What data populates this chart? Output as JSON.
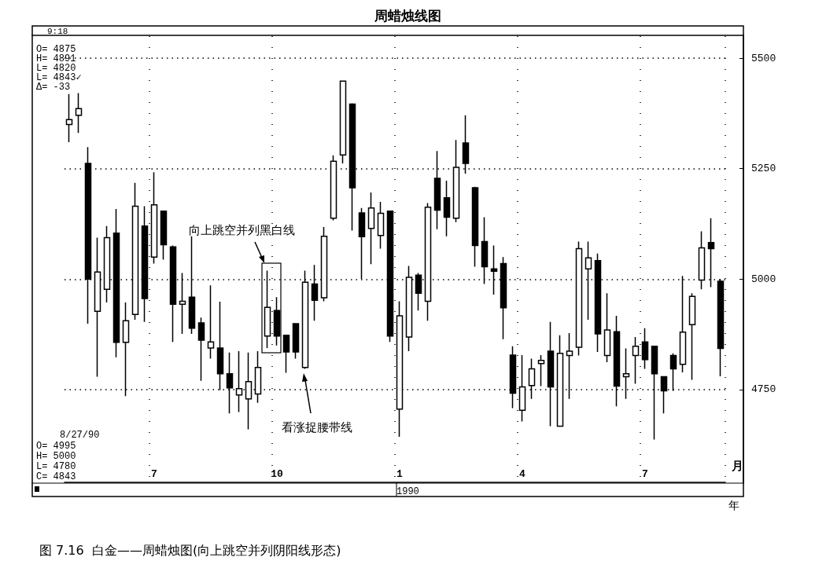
{
  "chart_data": {
    "type": "candlestick",
    "title": "周蜡烛线图",
    "categories": [
      null,
      null,
      null,
      null,
      null,
      null,
      null,
      null,
      null,
      "7",
      null,
      null,
      null,
      null,
      null,
      null,
      null,
      null,
      null,
      null,
      null,
      null,
      "10",
      null,
      null,
      null,
      null,
      null,
      null,
      null,
      null,
      null,
      null,
      null,
      null,
      "1",
      null,
      null,
      null,
      null,
      null,
      null,
      null,
      null,
      null,
      null,
      null,
      null,
      "4",
      null,
      null,
      null,
      null,
      null,
      null,
      null,
      null,
      null,
      null,
      null,
      null,
      "7",
      null,
      null,
      null,
      null,
      null,
      null,
      null,
      null
    ],
    "xlabel": "月",
    "ohlc": [
      [
        5350,
        5419,
        5310,
        5361
      ],
      [
        5371,
        5421,
        5331,
        5386
      ],
      [
        5262,
        5299,
        4899,
        5000
      ],
      [
        4927,
        5094,
        4779,
        5016
      ],
      [
        4977,
        5120,
        4947,
        5094
      ],
      [
        5104,
        5159,
        4823,
        4857
      ],
      [
        4857,
        4947,
        4735,
        4906
      ],
      [
        4920,
        5218,
        4908,
        5165
      ],
      [
        5120,
        5165,
        4903,
        4956
      ],
      [
        5050,
        5242,
        5035,
        5168
      ],
      [
        5154,
        5154,
        5044,
        5078
      ],
      [
        5073,
        5076,
        4858,
        4943
      ],
      [
        4943,
        5014,
        4876,
        4950
      ],
      [
        4959,
        5097,
        4876,
        4889
      ],
      [
        4901,
        4913,
        4770,
        4862
      ],
      [
        4844,
        4986,
        4820,
        4858
      ],
      [
        4844,
        4949,
        4749,
        4786
      ],
      [
        4786,
        4834,
        4696,
        4754
      ],
      [
        4738,
        4837,
        4699,
        4752
      ],
      [
        4729,
        4834,
        4660,
        4768
      ],
      [
        4740,
        4837,
        4720,
        4800
      ],
      [
        4871,
        5019,
        4844,
        4936
      ],
      [
        4929,
        4959,
        4850,
        4871
      ],
      [
        4873,
        4873,
        4788,
        4835
      ],
      [
        4899,
        4899,
        4820,
        4835
      ],
      [
        4800,
        5019,
        4797,
        4993
      ],
      [
        4989,
        5032,
        4906,
        4952
      ],
      [
        4958,
        5118,
        4950,
        5097
      ],
      [
        5138,
        5280,
        5133,
        5267
      ],
      [
        5281,
        5448,
        5262,
        5448
      ],
      [
        5396,
        5398,
        5110,
        5207
      ],
      [
        5150,
        5161,
        5000,
        5096
      ],
      [
        5115,
        5196,
        5034,
        5161
      ],
      [
        5099,
        5175,
        5069,
        5149
      ],
      [
        5154,
        5154,
        4858,
        4871
      ],
      [
        4706,
        4950,
        4643,
        4917
      ],
      [
        4869,
        5030,
        4837,
        5004
      ],
      [
        5009,
        5014,
        4929,
        4968
      ],
      [
        4950,
        5172,
        4906,
        5163
      ],
      [
        5228,
        5290,
        5113,
        5156
      ],
      [
        5184,
        5223,
        5097,
        5140
      ],
      [
        5138,
        5315,
        5129,
        5253
      ],
      [
        5308,
        5371,
        5239,
        5262
      ],
      [
        5207,
        5209,
        5028,
        5076
      ],
      [
        5085,
        5140,
        4989,
        5028
      ],
      [
        5023,
        5076,
        4965,
        5018
      ],
      [
        5035,
        5050,
        4864,
        4935
      ],
      [
        4828,
        4848,
        4708,
        4742
      ],
      [
        4703,
        4828,
        4678,
        4756
      ],
      [
        4759,
        4820,
        4729,
        4797
      ],
      [
        4809,
        4828,
        4758,
        4816
      ],
      [
        4837,
        4903,
        4667,
        4756
      ],
      [
        4667,
        4873,
        4667,
        4832
      ],
      [
        4827,
        4878,
        4729,
        4837
      ],
      [
        4846,
        5085,
        4827,
        5069
      ],
      [
        5023,
        5085,
        4908,
        5048
      ],
      [
        5042,
        5058,
        4835,
        4876
      ],
      [
        4827,
        4968,
        4812,
        4885
      ],
      [
        4881,
        4917,
        4712,
        4758
      ],
      [
        4779,
        4843,
        4729,
        4786
      ],
      [
        4827,
        4869,
        4763,
        4848
      ],
      [
        4858,
        4889,
        4797,
        4818
      ],
      [
        4848,
        4848,
        4637,
        4786
      ],
      [
        4779,
        4779,
        4696,
        4747
      ],
      [
        4827,
        4832,
        4747,
        4797
      ],
      [
        4807,
        5007,
        4789,
        4880
      ],
      [
        4897,
        4968,
        4772,
        4961
      ],
      [
        4998,
        5108,
        4977,
        5071
      ],
      [
        5083,
        5138,
        4982,
        5069
      ],
      [
        4995,
        5000,
        4780,
        4843
      ]
    ],
    "ylim": [
      4540,
      5550
    ],
    "yticks": [
      4750,
      5000,
      5250,
      5500
    ],
    "grid": true,
    "annotations": [
      "9:18",
      "O= 4875",
      "H= 4891",
      "L= 4820",
      "L= 4843✓",
      "Δ= -33",
      "8/27/90",
      "O= 4995",
      "H= 5000",
      "L= 4780",
      "C= 4843",
      "向上跳空并列黑白线",
      "看涨捉腰带线",
      "1990",
      "年",
      "图 7.16  白金——周蜡烛图(向上跳空并列阴阳线形态)"
    ]
  }
}
